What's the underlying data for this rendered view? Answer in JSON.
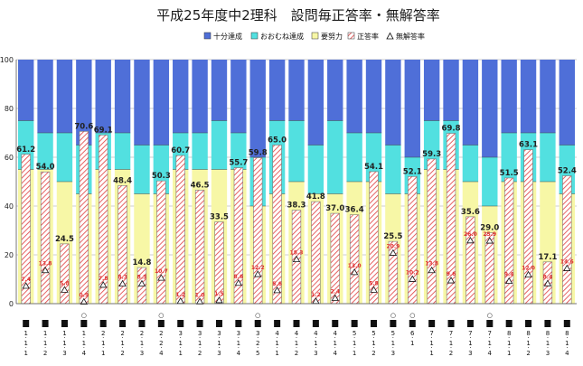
{
  "chart_data": {
    "type": "bar",
    "title": "平成25年度中2理科　設問毎正答率・無解答率",
    "ylim": [
      0,
      100
    ],
    "yticks": [
      0,
      20,
      40,
      60,
      80,
      100
    ],
    "grid": true,
    "legend_position": "top",
    "legend": [
      {
        "label": "十分達成",
        "color": "#4f6fd8",
        "key": "full"
      },
      {
        "label": "おおむね達成",
        "color": "#52e0e0",
        "key": "mostly"
      },
      {
        "label": "要努力",
        "color": "#f7f7a6",
        "key": "effort"
      },
      {
        "label": "正答率",
        "key": "correct"
      },
      {
        "label": "無解答率",
        "key": "noanswer"
      }
    ],
    "categories": [
      "1-1-1",
      "1-1-2",
      "1-1-3",
      "1-1-4",
      "2-1-1",
      "2-1-2",
      "2-1-3",
      "2-2-4",
      "3-1-1",
      "3-1-2",
      "3-1-3",
      "3-1-4",
      "3-2-5",
      "4-1-1",
      "4-1-2",
      "4-1-3",
      "4-1-4",
      "5-1-1",
      "5-1-2",
      "5-1-3",
      "6-1",
      "7-1-1",
      "7-1-2",
      "7-1-3",
      "7-1-4",
      "8-1-1",
      "8-1-2",
      "8-1-3",
      "8-1-4"
    ],
    "category_marks": [
      "",
      "",
      "",
      "○",
      "",
      "",
      "",
      "○",
      "",
      "",
      "",
      "",
      "○",
      "",
      "",
      "",
      "",
      "",
      "",
      "○",
      "○",
      "",
      "",
      "",
      "○",
      "",
      "",
      "",
      ""
    ],
    "series": [
      {
        "name": "正答率",
        "values": [
          61.2,
          54.0,
          24.5,
          70.6,
          69.1,
          48.4,
          14.8,
          50.3,
          60.7,
          46.5,
          33.5,
          55.7,
          59.8,
          65.0,
          38.3,
          41.8,
          37.0,
          36.4,
          54.1,
          25.5,
          52.1,
          59.3,
          69.8,
          35.6,
          29.0,
          51.5,
          63.1,
          17.1,
          52.4
        ]
      },
      {
        "name": "無解答率",
        "values": [
          7.4,
          13.8,
          5.8,
          0.9,
          7.8,
          8.3,
          8.3,
          10.7,
          1.2,
          1.0,
          1.5,
          8.6,
          12.2,
          5.6,
          18.3,
          1.2,
          2.4,
          13.0,
          5.8,
          20.9,
          10.2,
          13.8,
          9.6,
          26.0,
          25.9,
          9.4,
          12.0,
          8.4,
          14.6
        ]
      }
    ],
    "levels": {
      "mostly_low": [
        55,
        55,
        50,
        45,
        55,
        55,
        45,
        45,
        55,
        55,
        55,
        55,
        40,
        45,
        50,
        45,
        45,
        50,
        50,
        45,
        45,
        55,
        55,
        50,
        40,
        50,
        50,
        50,
        45
      ],
      "full_low": [
        75,
        70,
        70,
        65,
        70,
        70,
        65,
        65,
        70,
        70,
        75,
        70,
        60,
        75,
        75,
        65,
        75,
        70,
        70,
        65,
        60,
        75,
        75,
        65,
        60,
        70,
        70,
        70,
        65
      ]
    }
  }
}
